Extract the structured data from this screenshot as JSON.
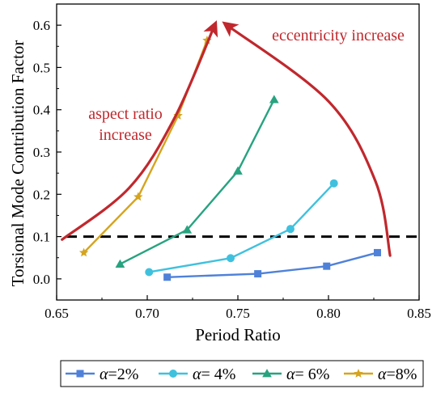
{
  "chart_data": {
    "type": "line",
    "xlabel": "Period Ratio",
    "ylabel": "Torsional Mode Contribution Factor",
    "xlim": [
      0.65,
      0.85
    ],
    "ylim": [
      -0.05,
      0.65
    ],
    "x_ticks": [
      "0.65",
      "0.70",
      "0.75",
      "0.80",
      "0.85"
    ],
    "y_ticks": [
      "0.0",
      "0.1",
      "0.2",
      "0.3",
      "0.4",
      "0.5",
      "0.6"
    ],
    "grid": false,
    "legend_position": "bottom (below plot)",
    "reference_line": {
      "y": 0.1,
      "style": "dashed",
      "color": "#000000"
    },
    "series": [
      {
        "name": "α=2%",
        "legend_symbol": "α",
        "legend_value": "=2%",
        "marker": "square",
        "color": "#4f81d9",
        "x": [
          0.711,
          0.761,
          0.799,
          0.827
        ],
        "y": [
          0.004,
          0.012,
          0.03,
          0.062
        ]
      },
      {
        "name": "α= 4%",
        "legend_symbol": "α",
        "legend_value": "= 4%",
        "marker": "circle",
        "color": "#3fc1de",
        "x": [
          0.701,
          0.746,
          0.779,
          0.803
        ],
        "y": [
          0.016,
          0.049,
          0.118,
          0.226
        ]
      },
      {
        "name": "α= 6%",
        "legend_symbol": "α",
        "legend_value": "= 6%",
        "marker": "triangle",
        "color": "#27a37f",
        "x": [
          0.685,
          0.722,
          0.75,
          0.77
        ],
        "y": [
          0.035,
          0.116,
          0.255,
          0.424
        ]
      },
      {
        "name": "α=8%",
        "legend_symbol": "α",
        "legend_value": "=8%",
        "marker": "star",
        "color": "#d5a41f",
        "x": [
          0.665,
          0.695,
          0.717,
          0.733
        ],
        "y": [
          0.062,
          0.194,
          0.386,
          0.564
        ]
      }
    ],
    "annotations": [
      {
        "id": "aspect",
        "lines": [
          "aspect ratio",
          "increase"
        ],
        "color": "#c0282d"
      },
      {
        "id": "eccentricity",
        "lines": [
          "eccentricity increase"
        ],
        "color": "#c0282d"
      }
    ],
    "arrows": [
      {
        "id": "aspect-arrow",
        "color": "#c0282d",
        "path": [
          [
            0.653,
            0.093
          ],
          [
            0.69,
            0.215
          ],
          [
            0.715,
            0.38
          ],
          [
            0.737,
            0.598
          ]
        ]
      },
      {
        "id": "eccentricity-arrow",
        "color": "#c0282d",
        "path": [
          [
            0.834,
            0.055
          ],
          [
            0.826,
            0.23
          ],
          [
            0.8,
            0.42
          ],
          [
            0.744,
            0.6
          ]
        ]
      }
    ]
  }
}
